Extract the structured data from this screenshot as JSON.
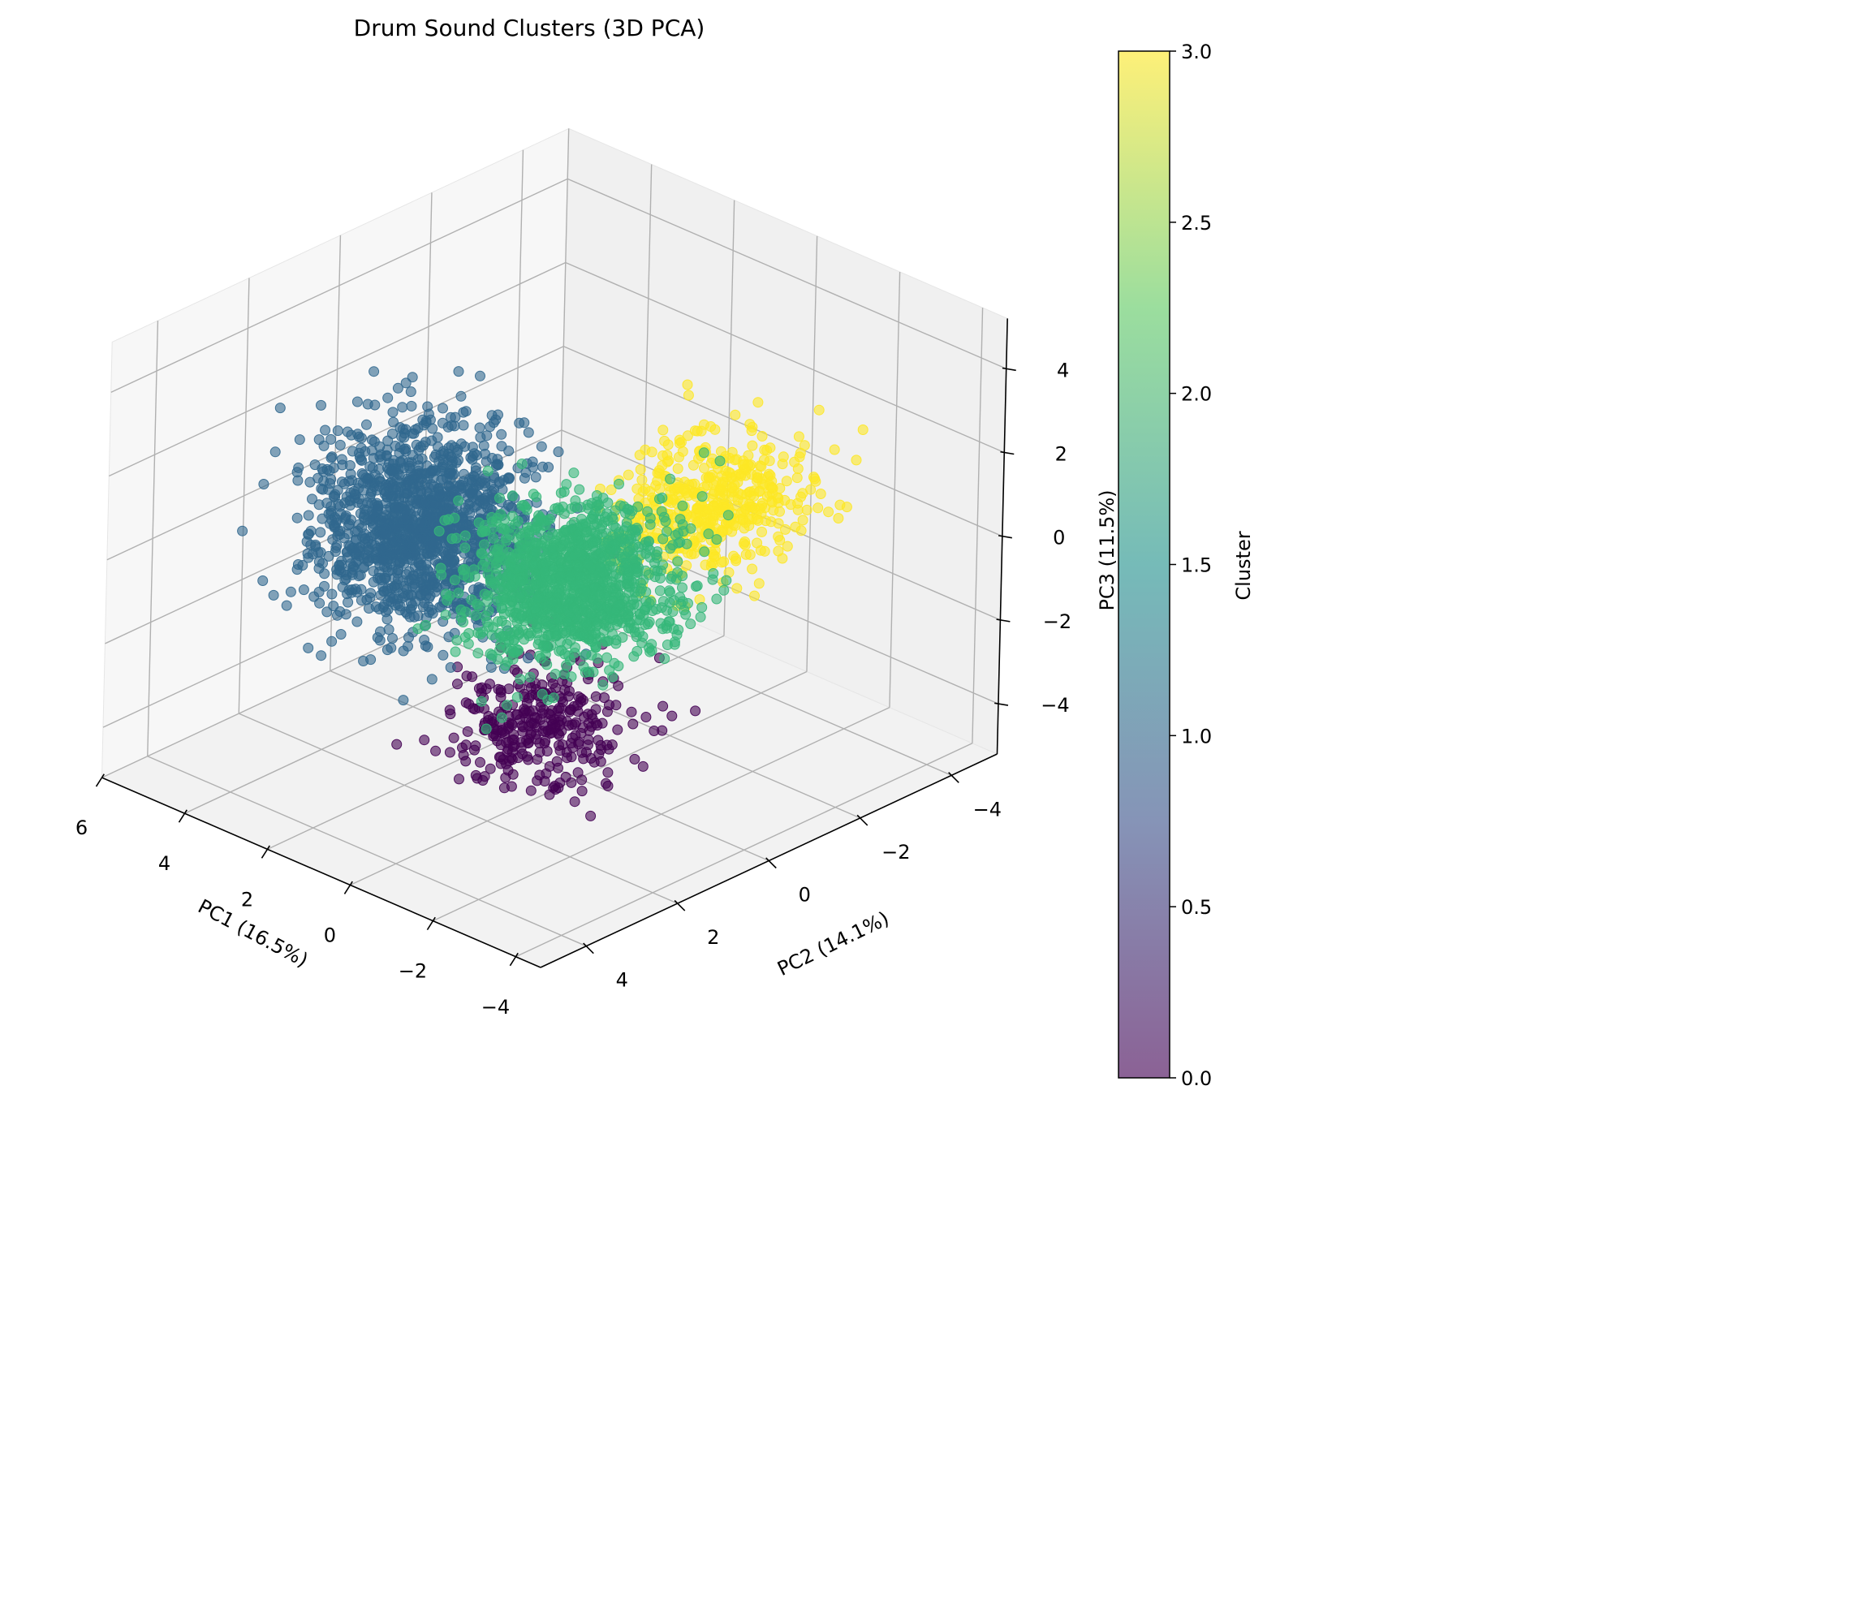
{
  "chart_data": {
    "type": "scatter",
    "projection": "3d",
    "title": "Drum Sound Clusters (3D PCA)",
    "xlabel": "PC1 (16.5%)",
    "ylabel": "PC2 (14.1%)",
    "zlabel": "PC3 (11.5%)",
    "xlim": [
      -4.6,
      6
    ],
    "ylim": [
      -5,
      5
    ],
    "zlim": [
      -5.2,
      5.2
    ],
    "xticks": [
      "6",
      "4",
      "2",
      "0",
      "−2",
      "−4"
    ],
    "yticks": [
      "−4",
      "−2",
      "0",
      "2",
      "4"
    ],
    "zticks": [
      "4",
      "2",
      "0",
      "−2",
      "−4"
    ],
    "grid": true,
    "marker_alpha": 0.6,
    "colormap": "viridis",
    "colorbar": {
      "label": "Cluster",
      "range": [
        0.0,
        3.0
      ],
      "ticks": [
        "0.0",
        "0.5",
        "1.0",
        "1.5",
        "2.0",
        "2.5",
        "3.0"
      ]
    },
    "clusters": [
      {
        "id": 0,
        "color": "#440154",
        "approx_points": 320
      },
      {
        "id": 1,
        "color": "#31688e",
        "approx_points": 1400
      },
      {
        "id": 2,
        "color": "#35b779",
        "approx_points": 1300
      },
      {
        "id": 3,
        "color": "#fde725",
        "approx_points": 500
      }
    ]
  }
}
